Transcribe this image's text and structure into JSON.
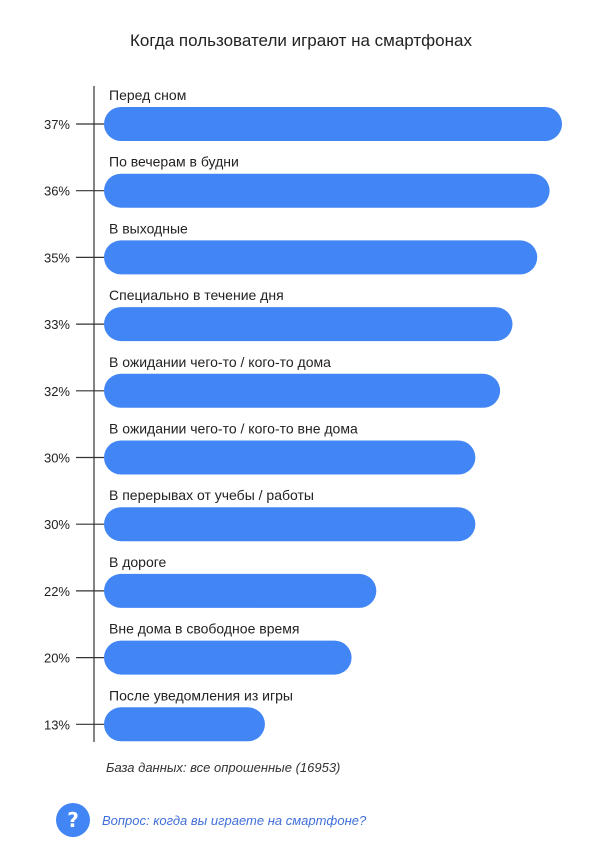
{
  "colors": {
    "bar": "#4285f4",
    "axis": "#333333",
    "text": "#222222",
    "question_text": "#3f6fd8"
  },
  "footer": {
    "base_note": "База данных: все опрошенные (16953)"
  },
  "question": {
    "icon": "question-mark-icon",
    "icon_glyph": "?",
    "text": "Вопрос: когда вы играете на смартфоне?"
  },
  "chart_data": {
    "type": "bar",
    "orientation": "horizontal",
    "title": "Когда пользователи играют на смартфонах",
    "categories": [
      "Перед сном",
      "По вечерам в будни",
      "В выходные",
      "Специально в течение дня",
      "В ожидании чего-то / кого-то дома",
      "В ожидании чего-то / кого-то вне дома",
      "В перерывах от учебы / работы",
      "В дороге",
      "Вне дома в свободное время",
      "После уведомления из игры"
    ],
    "values": [
      37,
      36,
      35,
      33,
      32,
      30,
      30,
      22,
      20,
      13
    ],
    "value_labels": [
      "37%",
      "36%",
      "35%",
      "33%",
      "32%",
      "30%",
      "30%",
      "22%",
      "20%",
      "13%"
    ],
    "unit": "%",
    "xlim": [
      0,
      37
    ],
    "grid": false,
    "legend": "none"
  }
}
